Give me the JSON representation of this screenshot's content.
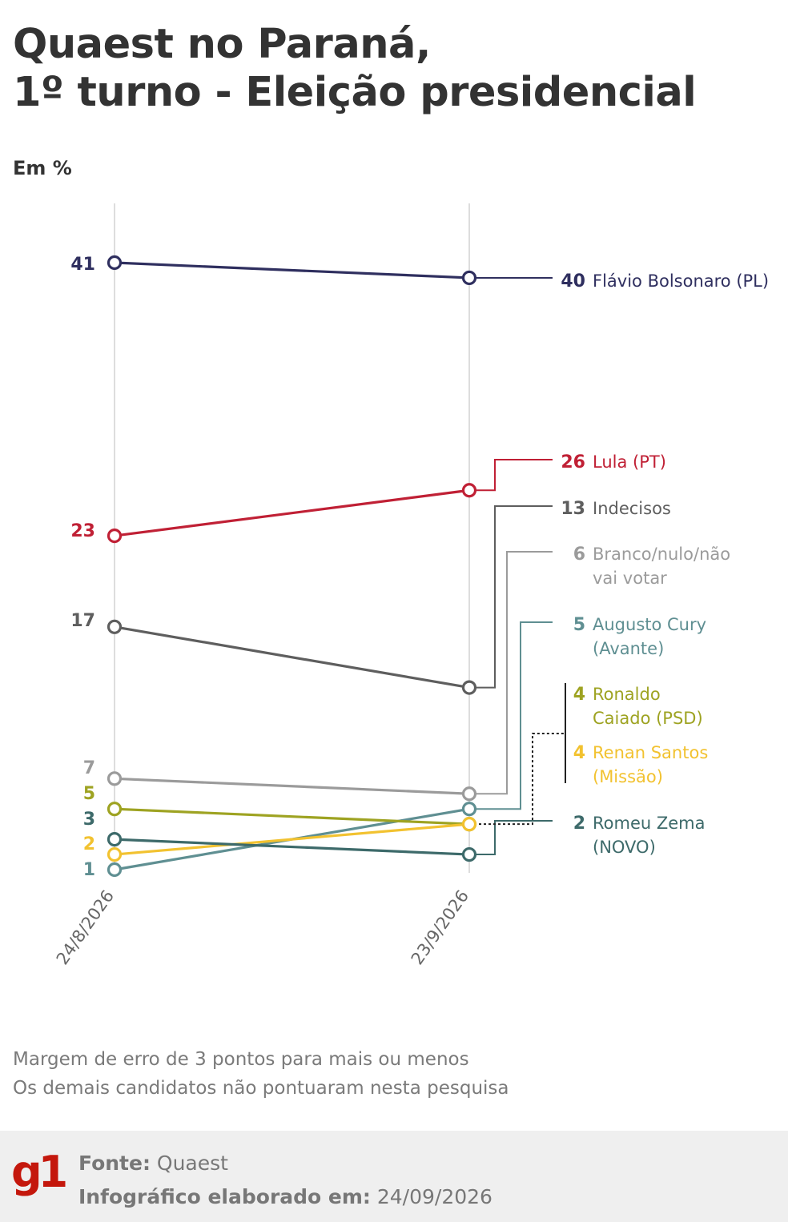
{
  "title": {
    "line1": "Quaest no Paraná,",
    "line2": "1º turno - Eleição presidencial"
  },
  "unit_label": "Em %",
  "chart_data": {
    "type": "line",
    "title": "Quaest no Paraná, 1º turno - Eleição presidencial",
    "ylabel": "Em %",
    "x": [
      "24/8/2026",
      "23/9/2026"
    ],
    "ylim": [
      0,
      45
    ],
    "grid": "vertical lines at each survey date",
    "legend": "direct labels at right",
    "series": [
      {
        "name": "Flávio Bolsonaro (PL)",
        "values": [
          41,
          40
        ],
        "color": "#2f2f5f",
        "label_lines": [
          "Flávio Bolsonaro (PL)"
        ]
      },
      {
        "name": "Lula (PT)",
        "values": [
          23,
          26
        ],
        "color": "#c02035",
        "label_lines": [
          "Lula (PT)"
        ]
      },
      {
        "name": "Indecisos",
        "values": [
          17,
          13
        ],
        "color": "#5e5e5e",
        "label_lines": [
          "Indecisos"
        ]
      },
      {
        "name": "Branco/nulo/não vai votar",
        "values": [
          7,
          6
        ],
        "color": "#9b9b9b",
        "label_lines": [
          "Branco/nulo/não",
          "vai votar"
        ]
      },
      {
        "name": "Augusto Cury (Avante)",
        "values": [
          1,
          5
        ],
        "color": "#5f8f92",
        "label_lines": [
          "Augusto Cury",
          "(Avante)"
        ]
      },
      {
        "name": "Ronaldo Caiado (PSD)",
        "values": [
          5,
          4
        ],
        "color": "#9ea322",
        "label_lines": [
          "Ronaldo",
          "Caiado (PSD)"
        ]
      },
      {
        "name": "Renan Santos (Missão)",
        "values": [
          2,
          4
        ],
        "color": "#f2c230",
        "label_lines": [
          "Renan Santos",
          "(Missão)"
        ]
      },
      {
        "name": "Romeu Zema (NOVO)",
        "values": [
          3,
          2
        ],
        "color": "#3d6a6a",
        "label_lines": [
          "Romeu Zema",
          "(NOVO)"
        ]
      }
    ]
  },
  "notes": {
    "margin": "Margem de erro de 3 pontos para mais ou menos",
    "others": "Os demais candidatos não pontuaram nesta pesquisa"
  },
  "footer": {
    "logo": "g1",
    "source_label": "Fonte:",
    "source_value": "Quaest",
    "date_label": "Infográfico elaborado em:",
    "date_value": "24/09/2026"
  }
}
